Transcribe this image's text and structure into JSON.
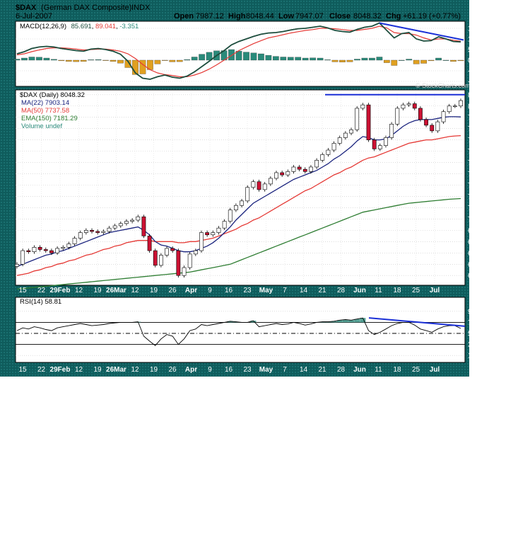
{
  "header": {
    "symbol": "$DAX",
    "name": "(German DAX Composite)",
    "exchange": "INDX",
    "date": "6-Jul-2007",
    "open_label": "Open",
    "open": "7987.12",
    "high_label": "High",
    "high": "8048.44",
    "low_label": "Low",
    "low": "7947.07",
    "close_label": "Close",
    "close": "8048.32",
    "chg_label": "Chg",
    "chg": "+61.19 (+0.77%)",
    "watermark": "© StockCharts.com"
  },
  "colors": {
    "frame": "#0f5c5c",
    "panel": "#ffffff",
    "up_candle": "#ffffff",
    "down_candle": "#cc1133",
    "ma22": "#1a237e",
    "ma50": "#e53935",
    "ema150": "#2e7d32",
    "trendline": "#1a2fd6",
    "hist_pos": "#2a8a7a",
    "hist_neg": "#e0a020",
    "macd": "#1d4d3d",
    "signal": "#e53935"
  },
  "chart_data": [
    {
      "type": "line",
      "panel": "macd",
      "title": "MACD(12,26,9)",
      "macd_label": "85.691",
      "signal_label": "89.041",
      "hist_label": "-3.351",
      "y_ticks": [
        "150",
        "100",
        "50",
        "0",
        "-50",
        "-100"
      ],
      "ylim": [
        -120,
        180
      ],
      "grid": true,
      "macd_series": [
        30,
        40,
        55,
        62,
        65,
        62,
        55,
        50,
        45,
        42,
        52,
        55,
        50,
        42,
        28,
        -5,
        -60,
        -85,
        -90,
        -78,
        -70,
        -80,
        -85,
        -75,
        -55,
        -30,
        -5,
        22,
        45,
        72,
        88,
        100,
        112,
        122,
        128,
        130,
        135,
        142,
        148,
        150,
        155,
        160,
        152,
        140,
        135,
        132,
        145,
        155,
        160,
        175,
        140,
        105,
        125,
        130,
        100,
        90,
        92,
        110,
        100,
        88,
        86
      ],
      "signal_series": [
        25,
        30,
        40,
        48,
        55,
        58,
        58,
        56,
        52,
        48,
        50,
        52,
        52,
        48,
        42,
        30,
        8,
        -20,
        -45,
        -60,
        -68,
        -72,
        -78,
        -78,
        -70,
        -58,
        -42,
        -22,
        0,
        22,
        45,
        62,
        78,
        92,
        105,
        112,
        120,
        128,
        134,
        140,
        144,
        150,
        150,
        148,
        144,
        140,
        140,
        145,
        150,
        160,
        152,
        130,
        125,
        125,
        118,
        105,
        95,
        100,
        100,
        94,
        89
      ],
      "histogram": [
        5,
        10,
        15,
        14,
        10,
        4,
        -3,
        -6,
        -7,
        -6,
        2,
        3,
        -2,
        -6,
        -14,
        -35,
        -68,
        -65,
        -45,
        -18,
        -2,
        -8,
        -7,
        3,
        15,
        28,
        37,
        44,
        45,
        50,
        43,
        38,
        34,
        30,
        23,
        18,
        15,
        14,
        14,
        10,
        11,
        10,
        2,
        -8,
        -9,
        -8,
        5,
        10,
        10,
        15,
        -12,
        -25,
        0,
        5,
        -18,
        -15,
        -3,
        10,
        0,
        -6,
        -3
      ]
    },
    {
      "type": "line",
      "panel": "price",
      "title": "$DAX (Daily) 8048.32",
      "legend": [
        {
          "name": "MA(22) 7903.14",
          "color": "#1a237e"
        },
        {
          "name": "MA(50) 7737.58",
          "color": "#e53935"
        },
        {
          "name": "EMA(150) 7181.29",
          "color": "#2e7d32"
        },
        {
          "name": "Volume undef",
          "color": "#2a8a7a"
        }
      ],
      "y_ticks": [
        "8100",
        "8000",
        "7900",
        "7800",
        "7700",
        "7600",
        "7500",
        "7400",
        "7300",
        "7200",
        "7100",
        "7000",
        "6900",
        "6800",
        "6700",
        "6600",
        "6500"
      ],
      "ylim": [
        6420,
        8130
      ],
      "x_labels": [
        "15",
        "22",
        "29Feb",
        "12",
        "19",
        "26Mar",
        "12",
        "19",
        "26",
        "Apr",
        "9",
        "16",
        "23",
        "May",
        "7",
        "14",
        "21",
        "28",
        "Jun",
        "11",
        "18",
        "25",
        "Jul"
      ],
      "close_series": [
        6600,
        6720,
        6710,
        6750,
        6730,
        6720,
        6700,
        6740,
        6750,
        6780,
        6830,
        6880,
        6900,
        6890,
        6880,
        6890,
        6920,
        6940,
        6960,
        6980,
        6990,
        7020,
        6850,
        6720,
        6590,
        6680,
        6740,
        6720,
        6500,
        6570,
        6690,
        6720,
        6880,
        6860,
        6880,
        6920,
        6980,
        7080,
        7120,
        7160,
        7280,
        7330,
        7260,
        7310,
        7360,
        7410,
        7390,
        7420,
        7460,
        7440,
        7420,
        7460,
        7520,
        7570,
        7610,
        7670,
        7720,
        7760,
        7790,
        7980,
        8010,
        7700,
        7620,
        7650,
        7720,
        7840,
        7980,
        8010,
        8020,
        7980,
        7880,
        7830,
        7780,
        7860,
        7950,
        8000,
        8000,
        8048
      ],
      "ma22_series": [
        6580,
        6600,
        6620,
        6640,
        6660,
        6680,
        6690,
        6710,
        6720,
        6740,
        6760,
        6780,
        6800,
        6820,
        6840,
        6860,
        6880,
        6890,
        6900,
        6910,
        6920,
        6930,
        6900,
        6860,
        6800,
        6770,
        6760,
        6740,
        6720,
        6710,
        6710,
        6720,
        6740,
        6760,
        6790,
        6830,
        6880,
        6930,
        6990,
        7040,
        7090,
        7140,
        7170,
        7200,
        7230,
        7260,
        7290,
        7320,
        7350,
        7370,
        7390,
        7410,
        7430,
        7460,
        7490,
        7530,
        7560,
        7600,
        7640,
        7690,
        7730,
        7720,
        7700,
        7700,
        7710,
        7740,
        7780,
        7820,
        7850,
        7870,
        7880,
        7880,
        7880,
        7890,
        7900,
        7905,
        7905,
        7903
      ],
      "ma50_series": [
        6500,
        6510,
        6520,
        6540,
        6550,
        6570,
        6580,
        6600,
        6610,
        6630,
        6640,
        6660,
        6680,
        6690,
        6710,
        6730,
        6740,
        6760,
        6770,
        6790,
        6800,
        6810,
        6810,
        6810,
        6800,
        6800,
        6800,
        6800,
        6790,
        6790,
        6800,
        6800,
        6810,
        6820,
        6830,
        6850,
        6870,
        6890,
        6910,
        6940,
        6960,
        6990,
        7010,
        7040,
        7070,
        7100,
        7130,
        7160,
        7190,
        7220,
        7250,
        7270,
        7300,
        7330,
        7360,
        7390,
        7410,
        7440,
        7460,
        7490,
        7520,
        7540,
        7550,
        7570,
        7590,
        7610,
        7630,
        7650,
        7670,
        7680,
        7690,
        7700,
        7700,
        7710,
        7720,
        7730,
        7735,
        7738
      ],
      "ema150_series": [
        6380,
        6385,
        6390,
        6395,
        6400,
        6405,
        6410,
        6415,
        6420,
        6425,
        6430,
        6435,
        6440,
        6445,
        6450,
        6455,
        6460,
        6465,
        6470,
        6475,
        6480,
        6485,
        6490,
        6495,
        6500,
        6505,
        6510,
        6515,
        6520,
        6525,
        6530,
        6540,
        6550,
        6560,
        6570,
        6580,
        6590,
        6600,
        6620,
        6640,
        6660,
        6680,
        6700,
        6720,
        6740,
        6760,
        6780,
        6800,
        6820,
        6840,
        6860,
        6880,
        6900,
        6920,
        6940,
        6960,
        6980,
        7000,
        7020,
        7040,
        7060,
        7070,
        7080,
        7090,
        7100,
        7110,
        7120,
        7130,
        7140,
        7145,
        7150,
        7155,
        7160,
        7165,
        7170,
        7175,
        7178,
        7181
      ]
    },
    {
      "type": "line",
      "panel": "rsi",
      "title": "RSI(14) 58.81",
      "y_ticks": [
        "90",
        "70",
        "50",
        "30",
        "10"
      ],
      "ylim": [
        0,
        100
      ],
      "x_labels": [
        "15",
        "22",
        "29Feb",
        "12",
        "19",
        "26Mar",
        "12",
        "19",
        "26",
        "Apr",
        "9",
        "16",
        "23",
        "May",
        "7",
        "14",
        "21",
        "28",
        "Jun",
        "11",
        "18",
        "25",
        "Jul"
      ],
      "rsi_series": [
        55,
        60,
        58,
        62,
        60,
        57,
        55,
        60,
        62,
        64,
        66,
        68,
        66,
        64,
        65,
        66,
        68,
        69,
        70,
        70,
        70,
        71,
        45,
        36,
        28,
        40,
        48,
        45,
        30,
        40,
        55,
        58,
        66,
        64,
        66,
        68,
        70,
        72,
        71,
        70,
        70,
        73,
        62,
        64,
        66,
        68,
        66,
        67,
        70,
        68,
        65,
        67,
        70,
        71,
        71,
        72,
        74,
        75,
        74,
        76,
        78,
        55,
        48,
        52,
        58,
        64,
        68,
        70,
        70,
        65,
        58,
        55,
        52,
        58,
        62,
        64,
        64,
        59
      ]
    }
  ]
}
